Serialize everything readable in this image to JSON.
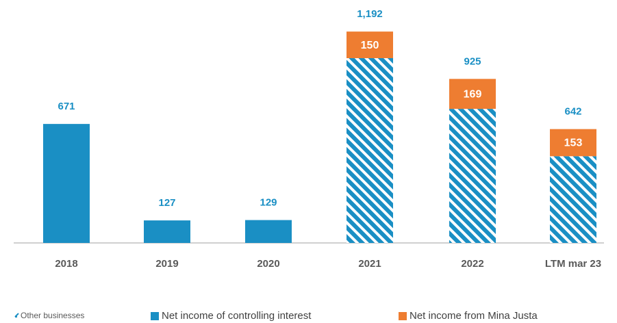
{
  "chart_data": {
    "type": "stacked_bar",
    "categories": [
      "2018",
      "2019",
      "2020",
      "2021",
      "2022",
      "LTM mar 23"
    ],
    "series": [
      {
        "name": "Net income of controlling interest",
        "color": "#1a8fc4",
        "values": [
          671,
          127,
          129,
          1042,
          756,
          489
        ]
      },
      {
        "name": "Net income from Mina Justa",
        "color": "#ee7d31",
        "values": [
          null,
          null,
          null,
          150,
          169,
          153
        ]
      }
    ],
    "total_labels": [
      "671",
      "127",
      "129",
      "1,192",
      "925",
      "642"
    ],
    "hatch": [
      false,
      false,
      false,
      true,
      true,
      true
    ],
    "hatch_legend": "Other businesses",
    "ylim": [
      0,
      1370
    ]
  }
}
